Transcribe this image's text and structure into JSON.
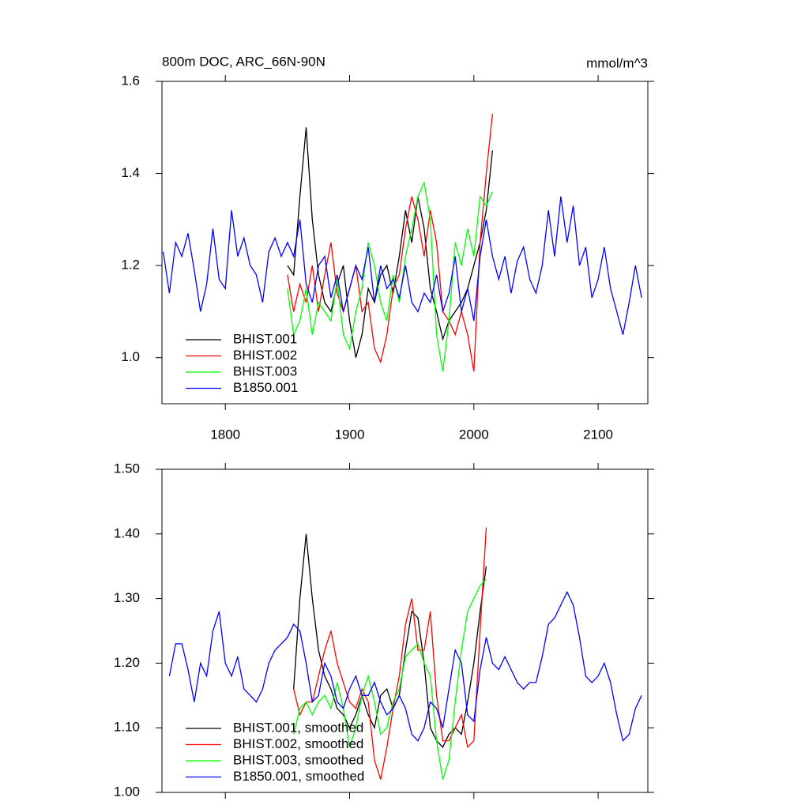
{
  "chart_data": [
    {
      "type": "line",
      "title": "800m DOC, ARC_66N-90N",
      "subtitle": "mmol/m^3",
      "x": [
        1750,
        1755,
        1760,
        1765,
        1770,
        1775,
        1780,
        1785,
        1790,
        1795,
        1800,
        1805,
        1810,
        1815,
        1820,
        1825,
        1830,
        1835,
        1840,
        1845,
        1850,
        1855,
        1860,
        1865,
        1870,
        1875,
        1880,
        1885,
        1890,
        1895,
        1900,
        1905,
        1910,
        1915,
        1920,
        1925,
        1930,
        1935,
        1940,
        1945,
        1950,
        1955,
        1960,
        1965,
        1970,
        1975,
        1980,
        1985,
        1990,
        1995,
        2000,
        2005,
        2010,
        2015,
        2020,
        2025,
        2030,
        2035,
        2040,
        2045,
        2050,
        2055,
        2060,
        2065,
        2070,
        2075,
        2080,
        2085,
        2090,
        2095,
        2100,
        2105,
        2110,
        2115,
        2120,
        2125,
        2130,
        2135
      ],
      "xlim": [
        1749,
        2140
      ],
      "xticks": [
        1800,
        1900,
        2000,
        2100
      ],
      "ylim": [
        0.9,
        1.6
      ],
      "yticks": [
        {
          "value": 1,
          "label": "1.0"
        },
        1.2,
        1.4,
        1.6
      ],
      "legend": "lower left",
      "series": [
        {
          "name": "BHIST.001",
          "color": "#000000",
          "values": [
            null,
            null,
            null,
            null,
            null,
            null,
            null,
            null,
            null,
            null,
            null,
            null,
            null,
            null,
            null,
            null,
            null,
            null,
            null,
            null,
            1.2,
            1.18,
            1.35,
            1.5,
            1.3,
            1.18,
            1.12,
            1.1,
            1.16,
            1.2,
            1.08,
            1.0,
            1.05,
            1.15,
            1.12,
            1.18,
            1.2,
            1.14,
            1.22,
            1.32,
            1.25,
            1.35,
            1.28,
            1.15,
            1.1,
            1.04,
            1.08,
            1.1,
            1.12,
            1.15,
            1.2,
            1.25,
            1.32,
            1.45,
            null,
            null,
            null,
            null,
            null,
            null,
            null,
            null,
            null,
            null,
            null,
            null,
            null,
            null,
            null,
            null,
            null,
            null,
            null,
            null,
            null,
            null,
            null,
            null
          ]
        },
        {
          "name": "BHIST.002",
          "color": "#ff0000",
          "values": [
            null,
            null,
            null,
            null,
            null,
            null,
            null,
            null,
            null,
            null,
            null,
            null,
            null,
            null,
            null,
            null,
            null,
            null,
            null,
            null,
            1.18,
            1.1,
            1.16,
            1.12,
            1.2,
            1.1,
            1.18,
            1.25,
            1.14,
            1.1,
            1.15,
            1.2,
            1.1,
            1.12,
            1.02,
            0.99,
            1.05,
            1.15,
            1.18,
            1.28,
            1.35,
            1.3,
            1.22,
            1.32,
            1.25,
            1.1,
            1.08,
            1.05,
            1.1,
            1.05,
            0.97,
            1.25,
            1.4,
            1.53,
            null,
            null,
            null,
            null,
            null,
            null,
            null,
            null,
            null,
            null,
            null,
            null,
            null,
            null,
            null,
            null,
            null,
            null,
            null,
            null,
            null,
            null,
            null,
            null
          ]
        },
        {
          "name": "BHIST.003",
          "color": "#00ff00",
          "values": [
            null,
            null,
            null,
            null,
            null,
            null,
            null,
            null,
            null,
            null,
            null,
            null,
            null,
            null,
            null,
            null,
            null,
            null,
            null,
            null,
            1.15,
            1.05,
            1.08,
            1.15,
            1.05,
            1.12,
            1.1,
            1.08,
            1.17,
            1.05,
            1.02,
            1.1,
            1.15,
            1.25,
            1.2,
            1.12,
            1.08,
            1.18,
            1.12,
            1.22,
            1.28,
            1.35,
            1.38,
            1.3,
            1.05,
            0.97,
            1.08,
            1.25,
            1.2,
            1.28,
            1.22,
            1.35,
            1.33,
            1.36,
            null,
            null,
            null,
            null,
            null,
            null,
            null,
            null,
            null,
            null,
            null,
            null,
            null,
            null,
            null,
            null,
            null,
            null,
            null,
            null,
            null,
            null,
            null,
            null
          ]
        },
        {
          "name": "B1850.001",
          "color": "#0000ff",
          "values": [
            1.23,
            1.14,
            1.25,
            1.22,
            1.27,
            1.19,
            1.1,
            1.16,
            1.28,
            1.17,
            1.15,
            1.32,
            1.22,
            1.26,
            1.2,
            1.18,
            1.12,
            1.23,
            1.26,
            1.22,
            1.25,
            1.22,
            1.3,
            1.16,
            1.12,
            1.2,
            1.22,
            1.13,
            1.18,
            1.1,
            1.15,
            1.2,
            1.17,
            1.24,
            1.12,
            1.2,
            1.15,
            1.17,
            1.13,
            1.2,
            1.12,
            1.1,
            1.14,
            1.12,
            1.18,
            1.1,
            1.14,
            1.22,
            1.1,
            1.15,
            1.08,
            1.22,
            1.3,
            1.22,
            1.17,
            1.22,
            1.14,
            1.21,
            1.24,
            1.17,
            1.14,
            1.2,
            1.32,
            1.22,
            1.35,
            1.25,
            1.33,
            1.2,
            1.24,
            1.13,
            1.17,
            1.24,
            1.15,
            1.1,
            1.05,
            1.12,
            1.2,
            1.13
          ]
        }
      ]
    },
    {
      "type": "line",
      "x": [
        1755,
        1760,
        1765,
        1770,
        1775,
        1780,
        1785,
        1790,
        1795,
        1800,
        1805,
        1810,
        1815,
        1820,
        1825,
        1830,
        1835,
        1840,
        1845,
        1850,
        1855,
        1860,
        1865,
        1870,
        1875,
        1880,
        1885,
        1890,
        1895,
        1900,
        1905,
        1910,
        1915,
        1920,
        1925,
        1930,
        1935,
        1940,
        1945,
        1950,
        1955,
        1960,
        1965,
        1970,
        1975,
        1980,
        1985,
        1990,
        1995,
        2000,
        2005,
        2010,
        2015,
        2020,
        2025,
        2030,
        2035,
        2040,
        2045,
        2050,
        2055,
        2060,
        2065,
        2070,
        2075,
        2080,
        2085,
        2090,
        2095,
        2100,
        2105,
        2110,
        2115,
        2120,
        2125,
        2130,
        2135
      ],
      "xlim": [
        1749,
        2140
      ],
      "xticks": [
        1800,
        1900,
        2000,
        2100
      ],
      "ylim": [
        1,
        1.5
      ],
      "yticks": [
        {
          "value": 1,
          "label": "1.00"
        },
        {
          "value": 1.1,
          "label": "1.10"
        },
        {
          "value": 1.2,
          "label": "1.20"
        },
        {
          "value": 1.3,
          "label": "1.30"
        },
        {
          "value": 1.4,
          "label": "1.40"
        },
        {
          "value": 1.5,
          "label": "1.50"
        }
      ],
      "legend": "lower left",
      "series": [
        {
          "name": "BHIST.001, smoothed",
          "color": "#000000",
          "values": [
            null,
            null,
            null,
            null,
            null,
            null,
            null,
            null,
            null,
            null,
            null,
            null,
            null,
            null,
            null,
            null,
            null,
            null,
            null,
            null,
            1.16,
            1.3,
            1.4,
            1.3,
            1.22,
            1.18,
            1.16,
            1.13,
            1.12,
            1.1,
            1.12,
            1.15,
            1.12,
            1.1,
            1.15,
            1.16,
            1.13,
            1.15,
            1.22,
            1.28,
            1.27,
            1.2,
            1.1,
            1.08,
            1.07,
            1.09,
            1.1,
            1.09,
            1.14,
            1.2,
            1.28,
            1.35,
            null,
            null,
            null,
            null,
            null,
            null,
            null,
            null,
            null,
            null,
            null,
            null,
            null,
            null,
            null,
            null,
            null,
            null,
            null,
            null,
            null,
            null,
            null,
            null,
            null
          ]
        },
        {
          "name": "BHIST.002, smoothed",
          "color": "#ff0000",
          "values": [
            null,
            null,
            null,
            null,
            null,
            null,
            null,
            null,
            null,
            null,
            null,
            null,
            null,
            null,
            null,
            null,
            null,
            null,
            null,
            null,
            1.16,
            1.12,
            1.14,
            1.14,
            1.18,
            1.22,
            1.25,
            1.2,
            1.17,
            1.14,
            1.13,
            1.16,
            1.14,
            1.05,
            1.02,
            1.07,
            1.13,
            1.18,
            1.26,
            1.3,
            1.22,
            1.22,
            1.28,
            1.15,
            1.08,
            1.08,
            1.1,
            1.12,
            1.07,
            1.08,
            1.25,
            1.41,
            null,
            null,
            null,
            null,
            null,
            null,
            null,
            null,
            null,
            null,
            null,
            null,
            null,
            null,
            null,
            null,
            null,
            null,
            null,
            null,
            null,
            null,
            null,
            null,
            null
          ]
        },
        {
          "name": "BHIST.003, smoothed",
          "color": "#00ff00",
          "values": [
            null,
            null,
            null,
            null,
            null,
            null,
            null,
            null,
            null,
            null,
            null,
            null,
            null,
            null,
            null,
            null,
            null,
            null,
            null,
            null,
            1.09,
            1.13,
            1.14,
            1.12,
            1.14,
            1.15,
            1.13,
            1.17,
            1.13,
            1.07,
            1.1,
            1.15,
            1.18,
            1.14,
            1.09,
            1.1,
            1.14,
            1.16,
            1.21,
            1.22,
            1.23,
            1.2,
            1.18,
            1.08,
            1.02,
            1.05,
            1.14,
            1.22,
            1.28,
            1.3,
            1.32,
            1.33,
            null,
            null,
            null,
            null,
            null,
            null,
            null,
            null,
            null,
            null,
            null,
            null,
            null,
            null,
            null,
            null,
            null,
            null,
            null,
            null,
            null,
            null,
            null,
            null,
            null
          ]
        },
        {
          "name": "B1850.001, smoothed",
          "color": "#0000ff",
          "values": [
            1.18,
            1.23,
            1.23,
            1.19,
            1.14,
            1.2,
            1.18,
            1.25,
            1.28,
            1.2,
            1.18,
            1.21,
            1.16,
            1.15,
            1.14,
            1.16,
            1.2,
            1.22,
            1.23,
            1.24,
            1.26,
            1.25,
            1.2,
            1.14,
            1.15,
            1.2,
            1.18,
            1.14,
            1.13,
            1.16,
            1.18,
            1.15,
            1.15,
            1.17,
            1.14,
            1.12,
            1.13,
            1.15,
            1.13,
            1.09,
            1.08,
            1.1,
            1.14,
            1.13,
            1.1,
            1.16,
            1.22,
            1.2,
            1.12,
            1.11,
            1.19,
            1.24,
            1.2,
            1.19,
            1.21,
            1.19,
            1.17,
            1.16,
            1.17,
            1.17,
            1.21,
            1.26,
            1.27,
            1.29,
            1.31,
            1.29,
            1.24,
            1.18,
            1.17,
            1.18,
            1.2,
            1.17,
            1.12,
            1.08,
            1.09,
            1.13,
            1.15
          ]
        }
      ]
    }
  ]
}
